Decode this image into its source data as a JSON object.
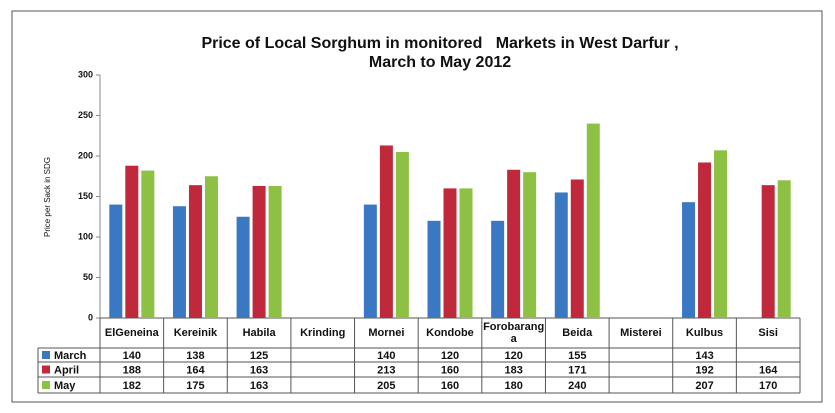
{
  "chart_data": {
    "type": "bar",
    "title": "Price of Local Sorghum in monitored   Markets in West Darfur ,",
    "subtitle": "March to May 2012",
    "y_label": "Price per Sack in SDG",
    "categories": [
      "ElGeneina",
      "Kereinik",
      "Habila",
      "Krinding",
      "Mornei",
      "Kondobe",
      "Forobaranga",
      "Beida",
      "Misterei",
      "Kulbus",
      "Sisi"
    ],
    "series": [
      {
        "name": "March",
        "color": "#3b78c4",
        "values": [
          140,
          138,
          125,
          null,
          140,
          120,
          120,
          155,
          null,
          143,
          null
        ]
      },
      {
        "name": "April",
        "color": "#c0283c",
        "values": [
          188,
          164,
          163,
          null,
          213,
          160,
          183,
          171,
          null,
          192,
          164
        ]
      },
      {
        "name": "May",
        "color": "#8dc043",
        "values": [
          182,
          175,
          163,
          null,
          205,
          160,
          180,
          240,
          null,
          207,
          170
        ]
      }
    ],
    "ylim": [
      0,
      300
    ],
    "yticks": [
      0,
      50,
      100,
      150,
      200,
      250,
      300
    ],
    "grid": false
  }
}
